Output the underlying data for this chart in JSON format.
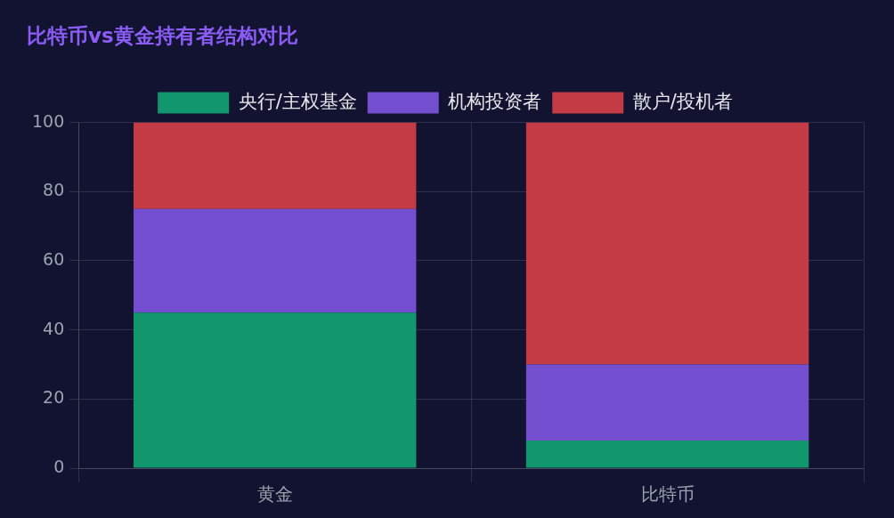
{
  "chart_data": {
    "type": "bar",
    "title": "比特币vs黄金持有者结构对比",
    "categories": [
      "黄金",
      "比特币"
    ],
    "stacked": true,
    "ylim": [
      0,
      100
    ],
    "yticks": [
      0,
      20,
      40,
      60,
      80,
      100
    ],
    "grid": true,
    "legend": "top",
    "series": [
      {
        "name": "央行/主权基金",
        "color": "#11966e",
        "values": [
          45,
          8
        ]
      },
      {
        "name": "机构投资者",
        "color": "#734fd0",
        "values": [
          30,
          22
        ]
      },
      {
        "name": "散户/投机者",
        "color": "#c43a45",
        "values": [
          25,
          70
        ]
      }
    ]
  }
}
